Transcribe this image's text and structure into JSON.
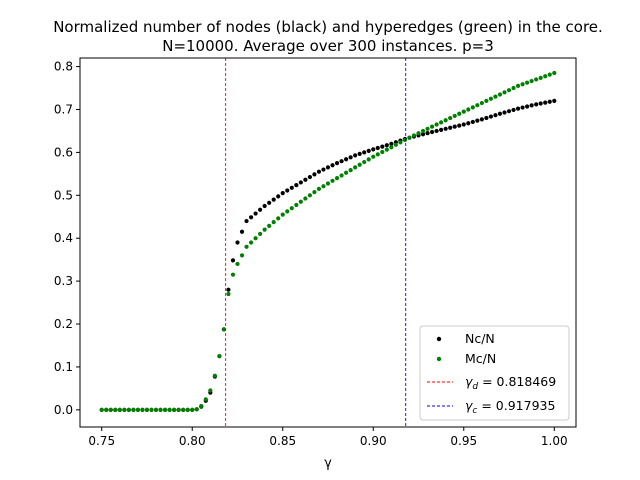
{
  "chart_data": {
    "type": "scatter",
    "title_lines": [
      "Normalized number of nodes (black) and hyperedges (green) in the core.",
      "N=10000. Average over 300 instances. p=3"
    ],
    "xlabel": "γ",
    "ylabel": "",
    "xlim": [
      0.738,
      1.012
    ],
    "ylim": [
      -0.04,
      0.82
    ],
    "xticks": [
      0.75,
      0.8,
      0.85,
      0.9,
      0.95,
      1.0
    ],
    "xtick_labels": [
      "0.75",
      "0.80",
      "0.85",
      "0.90",
      "0.95",
      "1.00"
    ],
    "yticks": [
      0.0,
      0.1,
      0.2,
      0.3,
      0.4,
      0.5,
      0.6,
      0.7,
      0.8
    ],
    "ytick_labels": [
      "0.0",
      "0.1",
      "0.2",
      "0.3",
      "0.4",
      "0.5",
      "0.6",
      "0.7",
      "0.8"
    ],
    "grid": false,
    "legend_position": "bottom-right",
    "x_range": {
      "start": 0.75,
      "end": 1.0,
      "step": 0.0025
    },
    "series": [
      {
        "name": "Nc/N",
        "color": "#000000",
        "marker": "dot",
        "anchors": [
          [
            0.75,
            0.0
          ],
          [
            0.802,
            0.0
          ],
          [
            0.806,
            0.01
          ],
          [
            0.81,
            0.04
          ],
          [
            0.814,
            0.1
          ],
          [
            0.818,
            0.2
          ],
          [
            0.82,
            0.28
          ],
          [
            0.822,
            0.34
          ],
          [
            0.825,
            0.39
          ],
          [
            0.83,
            0.44
          ],
          [
            0.84,
            0.475
          ],
          [
            0.85,
            0.505
          ],
          [
            0.86,
            0.53
          ],
          [
            0.87,
            0.555
          ],
          [
            0.88,
            0.575
          ],
          [
            0.89,
            0.593
          ],
          [
            0.9,
            0.607
          ],
          [
            0.91,
            0.62
          ],
          [
            0.917935,
            0.632
          ],
          [
            0.93,
            0.645
          ],
          [
            0.94,
            0.655
          ],
          [
            0.95,
            0.665
          ],
          [
            0.96,
            0.677
          ],
          [
            0.97,
            0.69
          ],
          [
            0.98,
            0.702
          ],
          [
            0.99,
            0.712
          ],
          [
            1.0,
            0.72
          ]
        ]
      },
      {
        "name": "Mc/N",
        "color": "#008000",
        "marker": "dot",
        "anchors": [
          [
            0.75,
            0.0
          ],
          [
            0.802,
            0.0
          ],
          [
            0.806,
            0.012
          ],
          [
            0.81,
            0.045
          ],
          [
            0.814,
            0.1
          ],
          [
            0.818,
            0.2
          ],
          [
            0.82,
            0.27
          ],
          [
            0.822,
            0.31
          ],
          [
            0.825,
            0.34
          ],
          [
            0.83,
            0.38
          ],
          [
            0.84,
            0.42
          ],
          [
            0.85,
            0.455
          ],
          [
            0.86,
            0.485
          ],
          [
            0.87,
            0.515
          ],
          [
            0.88,
            0.54
          ],
          [
            0.89,
            0.565
          ],
          [
            0.9,
            0.59
          ],
          [
            0.91,
            0.612
          ],
          [
            0.917935,
            0.63
          ],
          [
            0.93,
            0.655
          ],
          [
            0.94,
            0.675
          ],
          [
            0.95,
            0.695
          ],
          [
            0.96,
            0.715
          ],
          [
            0.97,
            0.735
          ],
          [
            0.98,
            0.755
          ],
          [
            0.99,
            0.77
          ],
          [
            1.0,
            0.785
          ]
        ]
      }
    ],
    "vlines": [
      {
        "name": "gamma_d",
        "x": 0.818469,
        "color": "#ff0000",
        "style": "dashed",
        "label_symbol": "γ",
        "label_sub": "d",
        "label_rest": " = 0.818469"
      },
      {
        "name": "gamma_c",
        "x": 0.917935,
        "color": "#0000ff",
        "style": "dashed",
        "label_symbol": "γ",
        "label_sub": "c",
        "label_rest": " = 0.917935"
      }
    ]
  }
}
